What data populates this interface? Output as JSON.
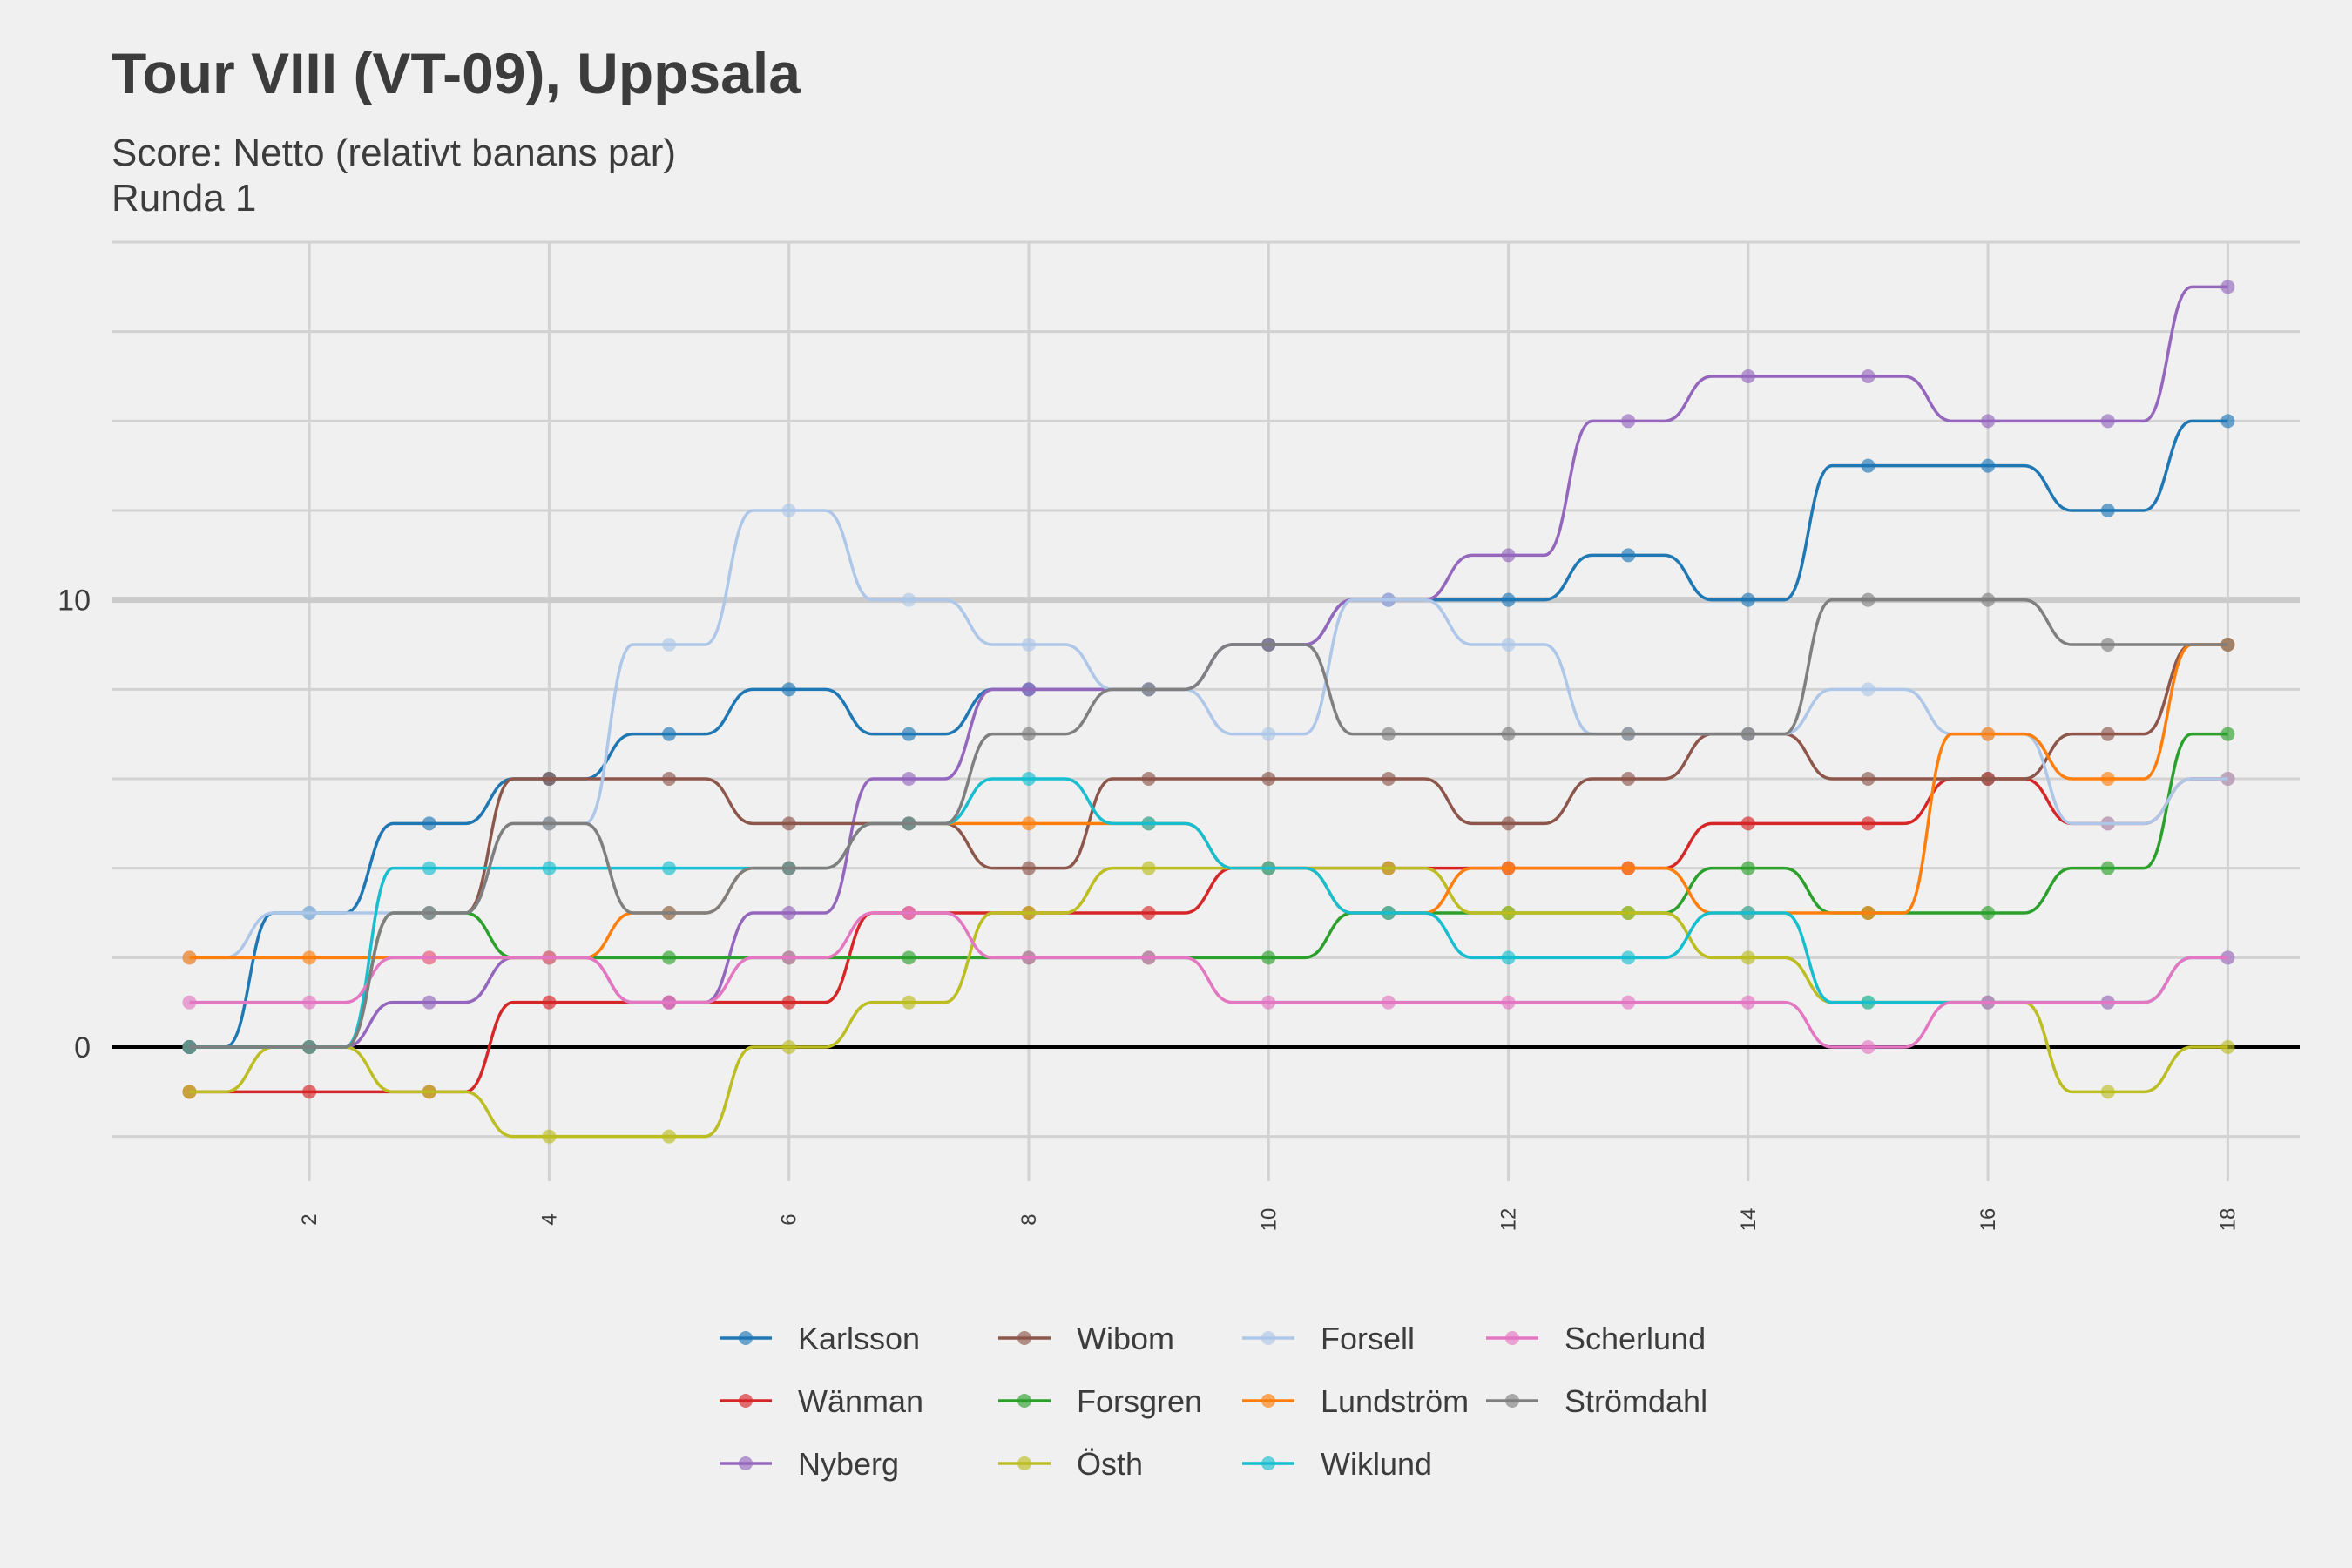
{
  "chart_data": {
    "type": "line",
    "title": "Tour VIII (VT-09), Uppsala",
    "subtitle_lines": [
      "Score: Netto (relativt banans par)",
      "Runda 1"
    ],
    "xlabel": "",
    "ylabel": "",
    "x": [
      1,
      2,
      3,
      4,
      5,
      6,
      7,
      8,
      9,
      10,
      11,
      12,
      13,
      14,
      15,
      16,
      17,
      18
    ],
    "x_ticks": [
      2,
      4,
      6,
      8,
      10,
      12,
      14,
      16,
      18
    ],
    "xlim": [
      0.35,
      18.6
    ],
    "y_ticks": [
      0,
      10
    ],
    "ylim": [
      -3,
      18
    ],
    "legend_position": "bottom",
    "grid": true,
    "series": [
      {
        "name": "Karlsson",
        "color": "#1f77b4",
        "values": [
          0,
          3,
          5,
          6,
          7,
          8,
          7,
          8,
          8,
          9,
          10,
          10,
          11,
          10,
          13,
          13,
          12,
          14
        ]
      },
      {
        "name": "Wänman",
        "color": "#d62728",
        "values": [
          -1,
          -1,
          -1,
          1,
          1,
          1,
          3,
          3,
          3,
          4,
          4,
          4,
          4,
          5,
          5,
          6,
          5,
          6
        ]
      },
      {
        "name": "Nyberg",
        "color": "#9467bd",
        "values": [
          0,
          0,
          1,
          2,
          1,
          3,
          6,
          8,
          8,
          9,
          10,
          11,
          14,
          15,
          15,
          14,
          14,
          17
        ]
      },
      {
        "name": "Wibom",
        "color": "#8c564b",
        "values": [
          0,
          0,
          3,
          6,
          6,
          5,
          5,
          4,
          6,
          6,
          6,
          5,
          6,
          7,
          6,
          6,
          7,
          9
        ]
      },
      {
        "name": "Forsgren",
        "color": "#2ca02c",
        "values": [
          0,
          0,
          3,
          2,
          2,
          2,
          2,
          2,
          2,
          2,
          3,
          3,
          3,
          4,
          3,
          3,
          4,
          7
        ]
      },
      {
        "name": "Östh",
        "color": "#bcbd22",
        "values": [
          -1,
          0,
          -1,
          -2,
          -2,
          0,
          1,
          3,
          4,
          4,
          4,
          3,
          3,
          2,
          1,
          1,
          -1,
          0
        ]
      },
      {
        "name": "Forsell",
        "color": "#aec7e8",
        "values": [
          2,
          3,
          3,
          5,
          9,
          12,
          10,
          9,
          8,
          7,
          10,
          9,
          7,
          7,
          8,
          7,
          5,
          6
        ]
      },
      {
        "name": "Lundström",
        "color": "#ff7f0e",
        "values": [
          2,
          2,
          2,
          2,
          3,
          4,
          5,
          5,
          5,
          4,
          3,
          4,
          4,
          3,
          3,
          7,
          6,
          9
        ]
      },
      {
        "name": "Wiklund",
        "color": "#17becf",
        "values": [
          0,
          0,
          4,
          4,
          4,
          4,
          5,
          6,
          5,
          4,
          3,
          2,
          2,
          3,
          1,
          1,
          1,
          2
        ]
      },
      {
        "name": "Scherlund",
        "color": "#e377c2",
        "values": [
          1,
          1,
          2,
          2,
          1,
          2,
          3,
          2,
          2,
          1,
          1,
          1,
          1,
          1,
          0,
          1,
          1,
          2
        ]
      },
      {
        "name": "Strömdahl",
        "color": "#7f7f7f",
        "values": [
          0,
          0,
          3,
          5,
          3,
          4,
          5,
          7,
          8,
          9,
          7,
          7,
          7,
          7,
          10,
          10,
          9,
          9
        ]
      }
    ]
  }
}
